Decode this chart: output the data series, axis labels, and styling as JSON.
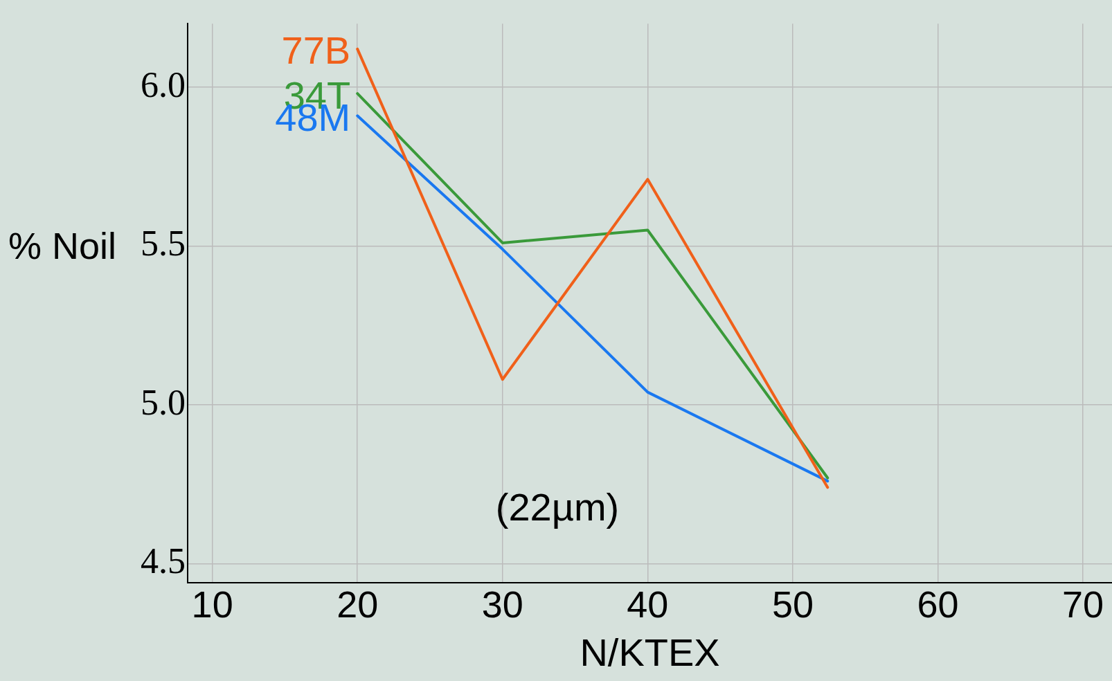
{
  "chart_data": {
    "type": "line",
    "xlabel": "N/KTEX",
    "ylabel": "% Noil",
    "xlim": [
      8.3,
      72
    ],
    "xticks": [
      10,
      20,
      30,
      40,
      50,
      60,
      70
    ],
    "ylim": [
      4.44,
      6.2
    ],
    "yticks": [
      {
        "value": 4.5,
        "label": "4.5"
      },
      {
        "value": 5.0,
        "label": "5.0"
      },
      {
        "value": 5.5,
        "label": "5.5"
      },
      {
        "value": 6.0,
        "label": "6.0"
      }
    ],
    "grid": true,
    "legend": false,
    "marker": "none",
    "line_style": "solid",
    "x": [
      20,
      30,
      40,
      52.4
    ],
    "series": [
      {
        "name": "77B",
        "color": "#f0601a",
        "values": [
          6.12,
          5.08,
          5.71,
          4.74
        ]
      },
      {
        "name": "34T",
        "color": "#3a9a3a",
        "values": [
          5.98,
          5.51,
          5.55,
          4.77
        ]
      },
      {
        "name": "48M",
        "color": "#1a78f0",
        "values": [
          5.91,
          5.49,
          5.04,
          4.76
        ]
      }
    ],
    "annotations": [
      "(22µm)"
    ]
  }
}
